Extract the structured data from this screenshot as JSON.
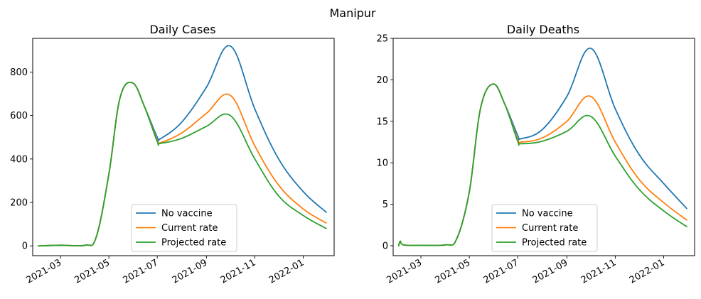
{
  "suptitle": "Manipur",
  "chart_data": [
    {
      "type": "line",
      "title": "Daily Cases",
      "xlabel": "",
      "ylabel": "",
      "x_ticks": [
        "2021-03",
        "2021-05",
        "2021-07",
        "2021-09",
        "2021-11",
        "2022-01"
      ],
      "y_ticks": [
        0,
        200,
        400,
        600,
        800
      ],
      "xlim": [
        "2021-01-25",
        "2022-02-09"
      ],
      "ylim": [
        -45,
        955
      ],
      "legend_position": "lower-center",
      "grid": false,
      "series": [
        {
          "name": "No vaccine",
          "color": "#1f77b4",
          "x": [
            "2021-02-01",
            "2021-03-01",
            "2021-04-01",
            "2021-04-15",
            "2021-05-01",
            "2021-05-15",
            "2021-05-31",
            "2021-06-15",
            "2021-07-01",
            "2021-07-05",
            "2021-08-01",
            "2021-09-01",
            "2021-10-01",
            "2021-11-01",
            "2021-12-01",
            "2022-01-01",
            "2022-01-30"
          ],
          "y": [
            0,
            3,
            3,
            40,
            330,
            680,
            750,
            640,
            500,
            493,
            570,
            730,
            920,
            630,
            400,
            250,
            155
          ]
        },
        {
          "name": "Current rate",
          "color": "#ff7f0e",
          "x": [
            "2021-02-01",
            "2021-03-01",
            "2021-04-01",
            "2021-04-15",
            "2021-05-01",
            "2021-05-15",
            "2021-05-31",
            "2021-06-15",
            "2021-07-01",
            "2021-07-05",
            "2021-08-01",
            "2021-09-01",
            "2021-10-01",
            "2021-11-01",
            "2021-12-01",
            "2022-01-01",
            "2022-01-30"
          ],
          "y": [
            0,
            3,
            3,
            40,
            330,
            680,
            750,
            640,
            485,
            475,
            520,
            610,
            693,
            460,
            280,
            170,
            105
          ]
        },
        {
          "name": "Projected rate",
          "color": "#2ca02c",
          "x": [
            "2021-02-01",
            "2021-03-01",
            "2021-04-01",
            "2021-04-15",
            "2021-05-01",
            "2021-05-15",
            "2021-05-31",
            "2021-06-15",
            "2021-07-01",
            "2021-07-05",
            "2021-08-01",
            "2021-09-01",
            "2021-10-01",
            "2021-11-01",
            "2021-12-01",
            "2022-01-01",
            "2022-01-30"
          ],
          "y": [
            0,
            3,
            3,
            40,
            330,
            680,
            750,
            640,
            480,
            472,
            495,
            550,
            600,
            400,
            230,
            140,
            80
          ]
        }
      ]
    },
    {
      "type": "line",
      "title": "Daily Deaths",
      "xlabel": "",
      "ylabel": "",
      "x_ticks": [
        "2021-03",
        "2021-05",
        "2021-07",
        "2021-09",
        "2021-11",
        "2022-01"
      ],
      "y_ticks": [
        0,
        5,
        10,
        15,
        20,
        25
      ],
      "xlim": [
        "2021-01-25",
        "2022-02-09"
      ],
      "ylim": [
        -1.2,
        25.0
      ],
      "legend_position": "lower-center",
      "grid": false,
      "series": [
        {
          "name": "No vaccine",
          "color": "#1f77b4",
          "x": [
            "2021-02-01",
            "2021-02-03",
            "2021-02-07",
            "2021-03-01",
            "2021-04-01",
            "2021-04-15",
            "2021-05-01",
            "2021-05-15",
            "2021-05-31",
            "2021-06-15",
            "2021-07-01",
            "2021-07-05",
            "2021-08-01",
            "2021-09-01",
            "2021-10-01",
            "2021-11-01",
            "2021-12-01",
            "2022-01-01",
            "2022-01-30"
          ],
          "y": [
            0,
            0.55,
            0.1,
            0.05,
            0.1,
            0.8,
            6.5,
            16.5,
            19.5,
            17.0,
            13.3,
            12.9,
            14.0,
            18.0,
            23.8,
            16.5,
            11.0,
            7.5,
            4.5
          ]
        },
        {
          "name": "Current rate",
          "color": "#ff7f0e",
          "x": [
            "2021-02-01",
            "2021-02-03",
            "2021-02-07",
            "2021-03-01",
            "2021-04-01",
            "2021-04-15",
            "2021-05-01",
            "2021-05-15",
            "2021-05-31",
            "2021-06-15",
            "2021-07-01",
            "2021-07-05",
            "2021-08-01",
            "2021-09-01",
            "2021-10-01",
            "2021-11-01",
            "2021-12-01",
            "2022-01-01",
            "2022-01-30"
          ],
          "y": [
            0,
            0.55,
            0.1,
            0.05,
            0.1,
            0.8,
            6.5,
            16.5,
            19.5,
            17.0,
            12.8,
            12.5,
            13.0,
            15.0,
            18.0,
            12.5,
            8.0,
            5.2,
            3.1
          ]
        },
        {
          "name": "Projected rate",
          "color": "#2ca02c",
          "x": [
            "2021-02-01",
            "2021-02-03",
            "2021-02-07",
            "2021-03-01",
            "2021-04-01",
            "2021-04-15",
            "2021-05-01",
            "2021-05-15",
            "2021-05-31",
            "2021-06-15",
            "2021-07-01",
            "2021-07-05",
            "2021-08-01",
            "2021-09-01",
            "2021-10-01",
            "2021-11-01",
            "2021-12-01",
            "2022-01-01",
            "2022-01-30"
          ],
          "y": [
            0,
            0.55,
            0.1,
            0.05,
            0.1,
            0.8,
            6.5,
            16.5,
            19.5,
            17.0,
            12.6,
            12.3,
            12.6,
            13.8,
            15.6,
            10.8,
            6.8,
            4.2,
            2.3
          ]
        }
      ]
    }
  ]
}
